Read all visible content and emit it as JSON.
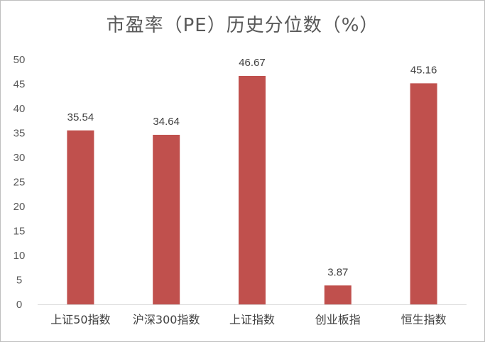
{
  "chart_data": {
    "type": "bar",
    "title": "市盈率（PE）历史分位数（%）",
    "xlabel": "",
    "ylabel": "",
    "categories": [
      "上证50指数",
      "沪深300指数",
      "上证指数",
      "创业板指",
      "恒生指数"
    ],
    "values": [
      35.54,
      34.64,
      46.67,
      3.87,
      45.16
    ],
    "value_labels": [
      "35.54",
      "34.64",
      "46.67",
      "3.87",
      "45.16"
    ],
    "ylim": [
      0,
      50
    ],
    "yticks": [
      0,
      5,
      10,
      15,
      20,
      25,
      30,
      35,
      40,
      45,
      50
    ],
    "grid": false,
    "legend": "none",
    "bar_color": "#c0504d"
  }
}
